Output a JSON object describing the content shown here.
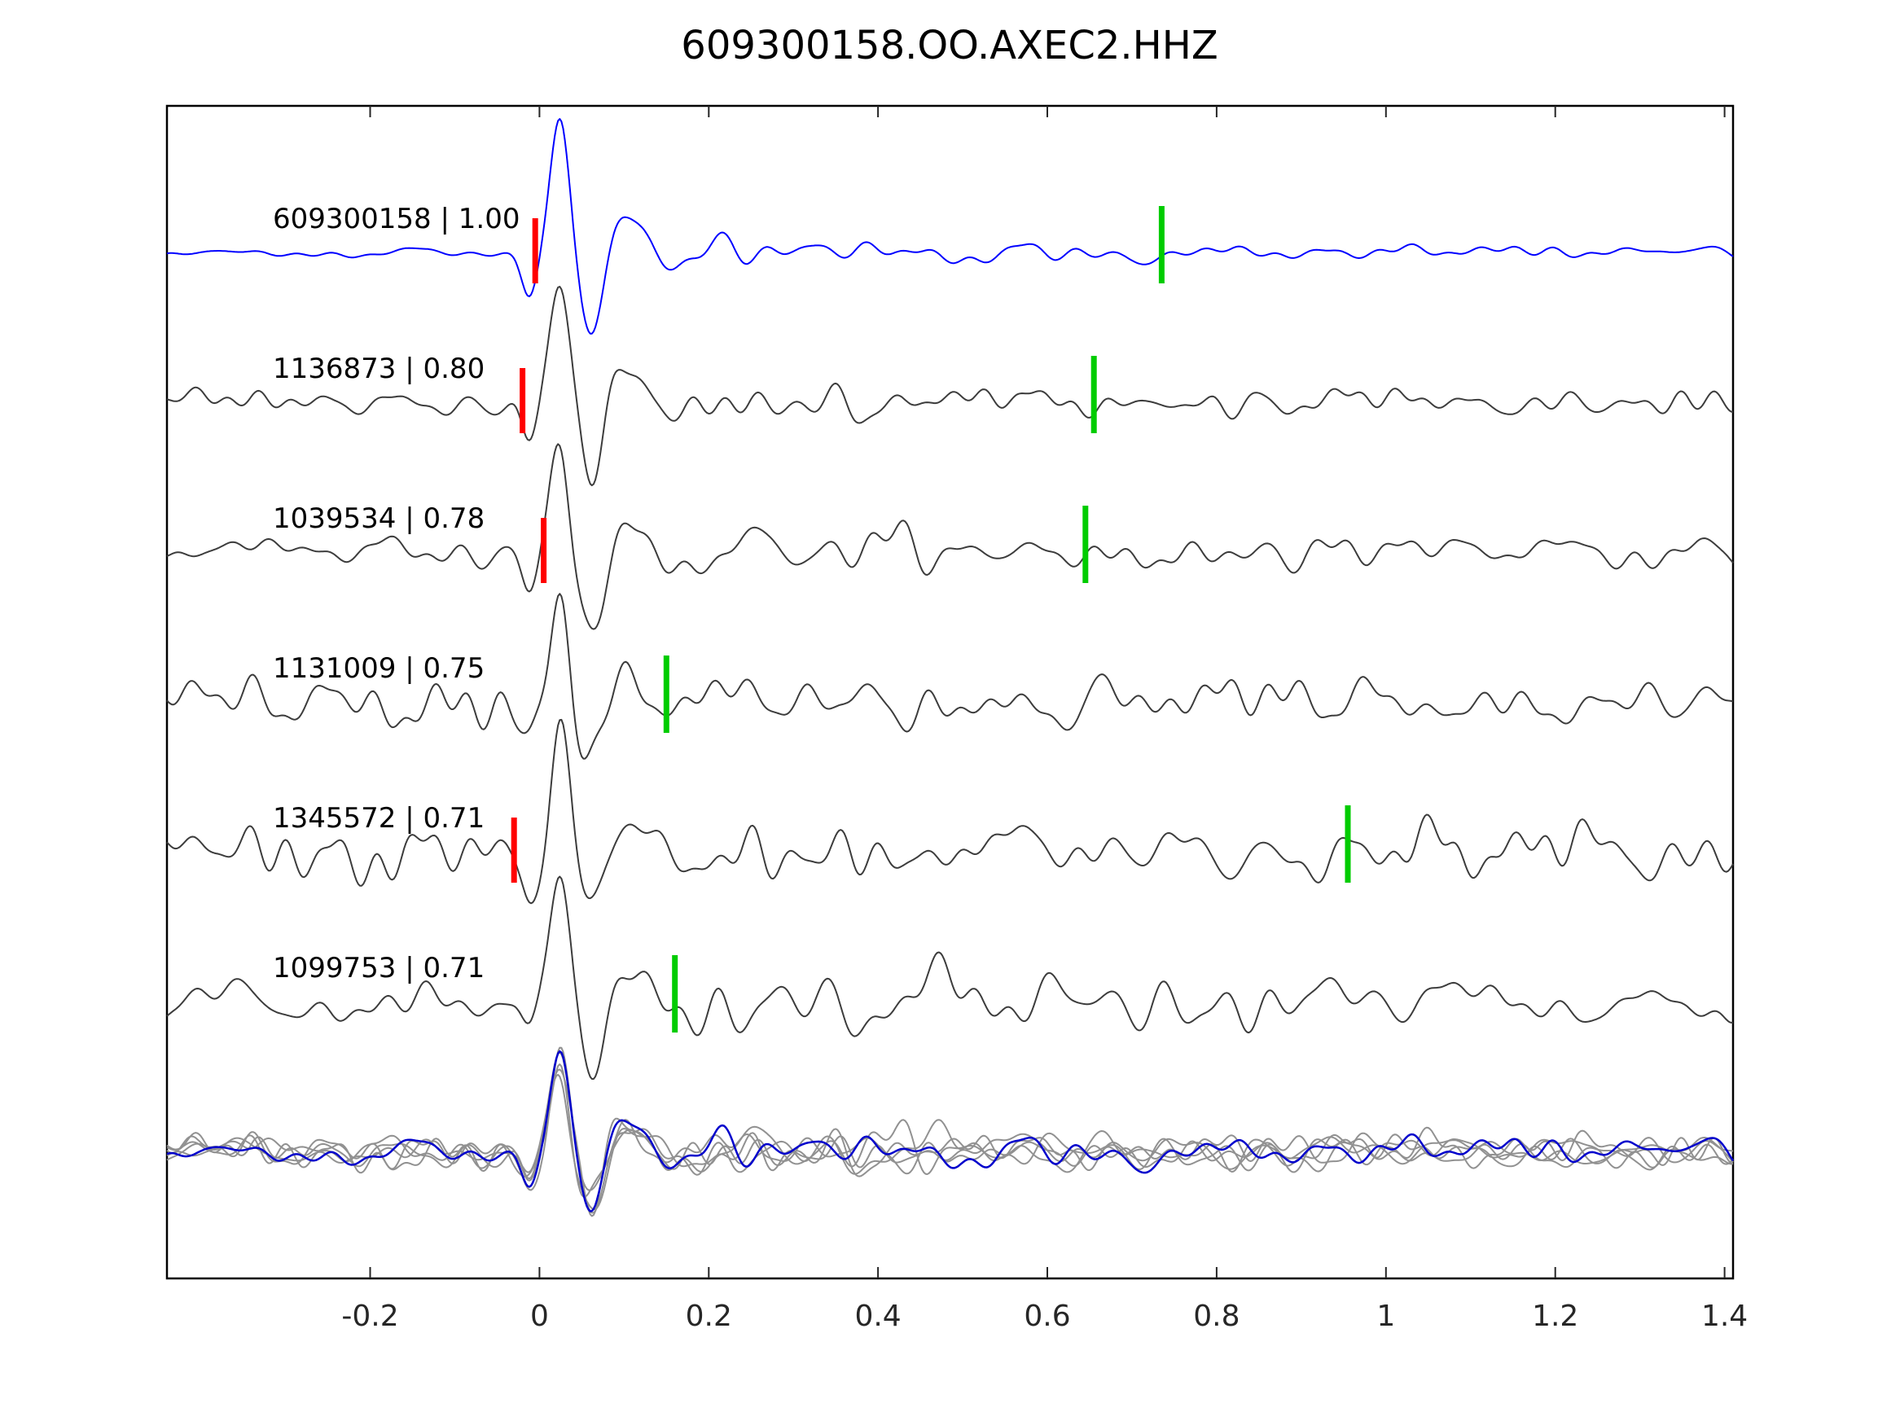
{
  "page": {
    "title": "609300158.OO.AXEC2.HHZ"
  },
  "colors": {
    "template_trace": "#0000ff",
    "match_trace": "#3c3c3c",
    "overlay_gray": "#919191",
    "overlay_blue": "#0000cc",
    "pick_red": "#ff0000",
    "pick_green": "#00cc00",
    "axis": "#262626",
    "plot_border": "#000000",
    "background": "#ffffff"
  },
  "chart_data": {
    "type": "line",
    "title": "609300158.OO.AXEC2.HHZ",
    "xlabel": "",
    "ylabel": "",
    "xlim": [
      -0.44,
      1.41
    ],
    "xticks": [
      -0.2,
      0,
      0.2,
      0.4,
      0.6,
      0.8,
      1,
      1.2,
      1.4
    ],
    "xtick_labels": [
      "-0.2",
      "0",
      "0.2",
      "0.4",
      "0.6",
      "0.8",
      "1",
      "1.2",
      "1.4"
    ],
    "grid": false,
    "legend": null,
    "description": "Template waveform (blue, top) and five matched detection waveforms (dark gray), aligned on the pick near t=0; red bars are reference picks, green bars are secondary picks; bottom row overlays all gray matches with the blue template.",
    "traces": [
      {
        "id": "609300158",
        "correlation": 1.0,
        "label": "609300158 | 1.00",
        "role": "template",
        "picks": {
          "red": -0.005,
          "green": 0.735
        },
        "waveform": {
          "seed": 42,
          "noise_base": 3,
          "noise_coda": 9,
          "pulse_amp": 165
        }
      },
      {
        "id": "1136873",
        "correlation": 0.8,
        "label": "1136873 | 0.80",
        "role": "match",
        "picks": {
          "red": -0.02,
          "green": 0.655
        },
        "waveform": {
          "seed": 7,
          "noise_base": 8,
          "noise_coda": 4,
          "pulse_amp": 160
        }
      },
      {
        "id": "1039534",
        "correlation": 0.78,
        "label": "1039534 | 0.78",
        "role": "match",
        "picks": {
          "red": 0.005,
          "green": 0.645
        },
        "waveform": {
          "seed": 13,
          "noise_base": 10,
          "noise_coda": 4,
          "pulse_amp": 160
        }
      },
      {
        "id": "1131009",
        "correlation": 0.75,
        "label": "1131009 | 0.75",
        "role": "match",
        "picks": {
          "red": null,
          "green": 0.15
        },
        "waveform": {
          "seed": 21,
          "noise_base": 14,
          "noise_coda": 4,
          "pulse_amp": 150
        }
      },
      {
        "id": "1345572",
        "correlation": 0.71,
        "label": "1345572 | 0.71",
        "role": "match",
        "picks": {
          "red": -0.03,
          "green": 0.955
        },
        "waveform": {
          "seed": 33,
          "noise_base": 16,
          "noise_coda": 3,
          "pulse_amp": 150
        }
      },
      {
        "id": "1099753",
        "correlation": 0.71,
        "label": "1099753 | 0.71",
        "role": "match",
        "picks": {
          "red": null,
          "green": 0.16
        },
        "waveform": {
          "seed": 55,
          "noise_base": 17,
          "noise_coda": 3,
          "pulse_amp": 150
        }
      }
    ],
    "overlay": {
      "gray": {
        "seeds": [
          7,
          13,
          21,
          33,
          55
        ],
        "noise_base": 10,
        "noise_coda": 4,
        "pulse_amp": 120
      },
      "blue": {
        "seed": 42,
        "noise_base": 8,
        "noise_coda": 6,
        "pulse_amp": 120
      }
    },
    "pulse_shape": [
      {
        "amp": -0.32,
        "mu": -0.012,
        "sigma": 0.013
      },
      {
        "amp": 1.0,
        "mu": 0.024,
        "sigma": 0.016
      },
      {
        "amp": -0.62,
        "mu": 0.062,
        "sigma": 0.022
      },
      {
        "amp": 0.22,
        "mu": 0.105,
        "sigma": 0.028
      },
      {
        "amp": -0.08,
        "mu": 0.16,
        "sigma": 0.03
      }
    ]
  }
}
